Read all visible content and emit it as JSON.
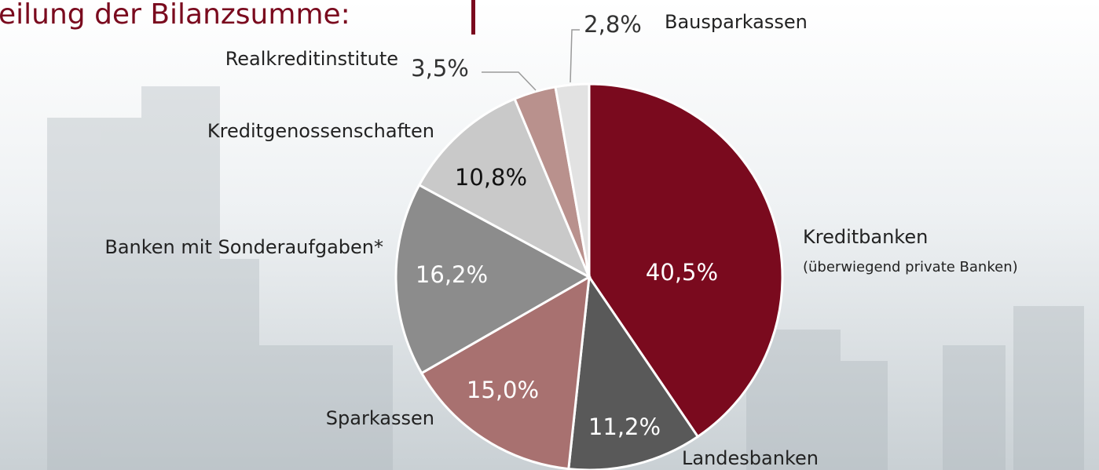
{
  "chart_data": {
    "type": "pie",
    "title": "eilung der Bilanzsumme:",
    "categories": [
      "Kreditbanken",
      "Landesbanken",
      "Sparkassen",
      "Banken mit Sonderaufgaben*",
      "Kreditgenossenschaften",
      "Realkreditinstitute",
      "Bausparkassen"
    ],
    "category_notes": [
      "(überwiegend private Banken)",
      null,
      null,
      null,
      null,
      null,
      null
    ],
    "values": [
      40.5,
      11.2,
      15.0,
      16.2,
      10.8,
      3.5,
      2.8
    ],
    "value_labels": [
      "40,5%",
      "11,2%",
      "15,0%",
      "16,2%",
      "10,8%",
      "3,5%",
      "2,8%"
    ],
    "colors": [
      "#7a0a1e",
      "#595959",
      "#a87170",
      "#8c8c8c",
      "#c9c9c9",
      "#b9918d",
      "#e2e2e2"
    ]
  }
}
